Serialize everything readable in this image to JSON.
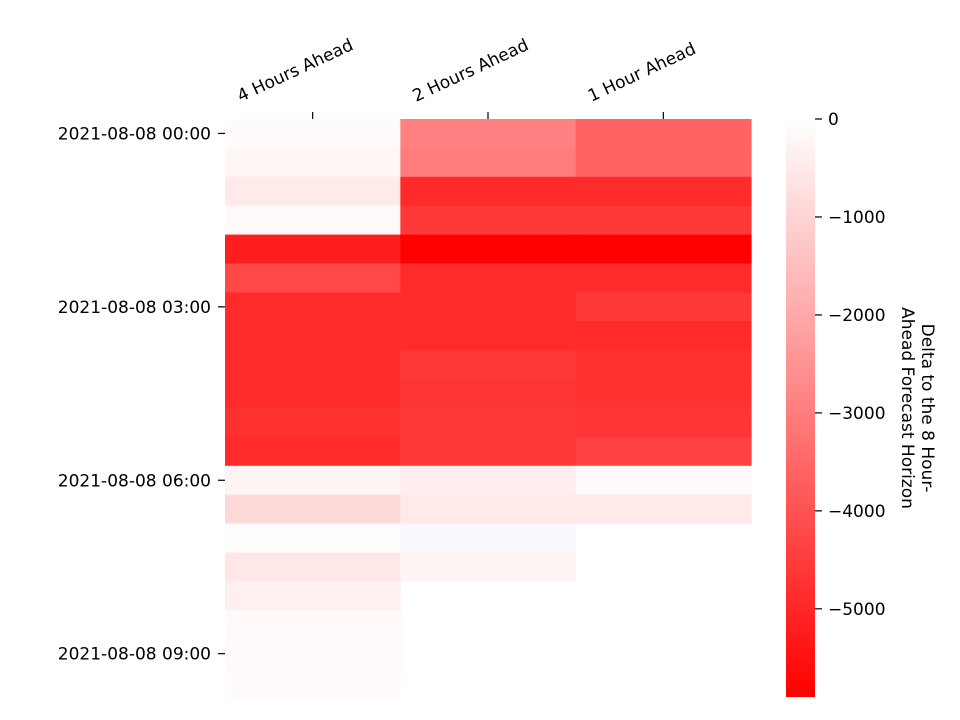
{
  "chart_data": {
    "type": "heatmap",
    "columns": [
      "4 Hours Ahead",
      "2 Hours Ahead",
      "1 Hour Ahead"
    ],
    "rows": [
      "2021-08-08 00:00",
      "2021-08-08 00:30",
      "2021-08-08 01:00",
      "2021-08-08 01:30",
      "2021-08-08 02:00",
      "2021-08-08 02:30",
      "2021-08-08 03:00",
      "2021-08-08 03:30",
      "2021-08-08 04:00",
      "2021-08-08 04:30",
      "2021-08-08 05:00",
      "2021-08-08 05:30",
      "2021-08-08 06:00",
      "2021-08-08 06:30",
      "2021-08-08 07:00",
      "2021-08-08 07:30",
      "2021-08-08 08:00",
      "2021-08-08 08:30",
      "2021-08-08 09:00",
      "2021-08-08 09:30"
    ],
    "row_tick_labels": [
      {
        "row": 0,
        "label": "2021-08-08 00:00"
      },
      {
        "row": 6,
        "label": "2021-08-08 03:00"
      },
      {
        "row": 12,
        "label": "2021-08-08 06:00"
      },
      {
        "row": 18,
        "label": "2021-08-08 09:00"
      }
    ],
    "values": [
      [
        -100,
        -2900,
        -3600
      ],
      [
        -200,
        -3000,
        -3600
      ],
      [
        -500,
        -4900,
        -4900
      ],
      [
        -150,
        -4600,
        -4600
      ],
      [
        -5200,
        -5900,
        -5900
      ],
      [
        -4200,
        -4900,
        -4900
      ],
      [
        -4900,
        -4900,
        -4600
      ],
      [
        -4900,
        -4900,
        -4900
      ],
      [
        -4900,
        -4600,
        -4800
      ],
      [
        -4900,
        -4700,
        -4800
      ],
      [
        -4800,
        -4600,
        -4700
      ],
      [
        -4900,
        -4600,
        -4400
      ],
      [
        -250,
        -400,
        -150
      ],
      [
        -900,
        -500,
        -500
      ],
      [
        -80,
        50,
        null
      ],
      [
        -550,
        -250,
        null
      ],
      [
        -350,
        null,
        null
      ],
      [
        -150,
        null,
        null
      ],
      [
        -120,
        null,
        null
      ],
      [
        -100,
        null,
        null
      ]
    ],
    "colorbar": {
      "label": "Delta to the 8 Hour-\nAhead Forecast Horizon",
      "min": -5900,
      "max": 0,
      "ticks": [
        0,
        -1000,
        -2000,
        -3000,
        -4000,
        -5000
      ],
      "tick_labels": [
        "0",
        "−1000",
        "−2000",
        "−3000",
        "−4000",
        "−5000"
      ],
      "colors": {
        "zero": "#ffffff",
        "min": "#ff0000",
        "positive": "#f8f9ff"
      }
    },
    "grid": false
  }
}
